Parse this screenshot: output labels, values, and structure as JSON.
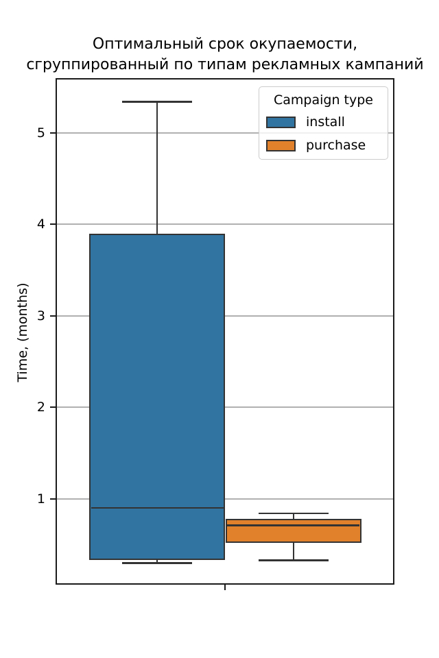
{
  "figure": {
    "title_lines": [
      "Оптимальный срок окупаемости,",
      "сгруппированный по типам рекламных кампаний"
    ]
  },
  "chart_data": {
    "type": "boxplot",
    "title": "Оптимальный срок окупаемости, сгруппированный по типам рекламных кампаний",
    "xlabel": "",
    "ylabel": "Time, (months)",
    "yticks": [
      1,
      2,
      3,
      4,
      5
    ],
    "ylim": [
      0.06,
      5.6
    ],
    "grid": "horizontal-y",
    "grid_color": "#b0b0b0",
    "edge_color": "#333333",
    "legend": {
      "title": "Campaign type",
      "position": "upper right",
      "entries": [
        {
          "label": "install",
          "color": "#3274a1"
        },
        {
          "label": "purchase",
          "color": "#e1812c"
        }
      ]
    },
    "series": [
      {
        "name": "install",
        "color": "#3274a1",
        "whisker_low": 0.3,
        "q1": 0.33,
        "median": 0.9,
        "q3": 3.9,
        "whisker_high": 5.34
      },
      {
        "name": "purchase",
        "color": "#e1812c",
        "whisker_low": 0.33,
        "q1": 0.52,
        "median": 0.71,
        "q3": 0.78,
        "whisker_high": 0.84
      }
    ]
  }
}
